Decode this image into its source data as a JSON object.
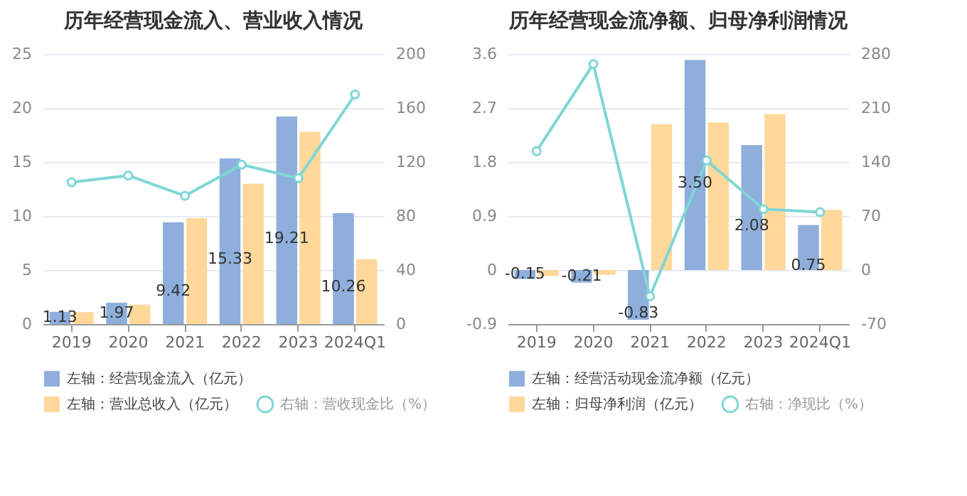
{
  "chart_data": [
    {
      "type": "bar",
      "title": "历年经营现金流入、营业收入情况",
      "categories": [
        "2019",
        "2020",
        "2021",
        "2022",
        "2023",
        "2024Q1"
      ],
      "series": [
        {
          "name": "左轴：经营现金流入（亿元）",
          "color": "#8eaedb",
          "values": [
            1.13,
            1.97,
            9.42,
            15.33,
            19.21,
            10.26
          ],
          "value_labels": [
            "1.13",
            "1.97",
            "9.42",
            "15.33",
            "19.21",
            "10.26"
          ]
        },
        {
          "name": "左轴：营业总收入（亿元）",
          "color": "#ffd89a",
          "values": [
            1.1,
            1.8,
            9.8,
            13.0,
            17.8,
            6.0
          ]
        },
        {
          "name": "右轴：营收现金比（%）",
          "color": "#7fd6d6",
          "type": "line",
          "axis": "y2",
          "values": [
            105,
            110,
            95,
            118,
            108,
            170
          ]
        }
      ],
      "ylim": [
        0,
        25
      ],
      "yticks": [
        0,
        5,
        10,
        15,
        20,
        25
      ],
      "y2lim": [
        0,
        200
      ],
      "y2ticks": [
        0,
        40,
        80,
        120,
        160,
        200
      ],
      "grid": "y",
      "legend": "bottom",
      "marker": "circle"
    },
    {
      "type": "bar",
      "title": "历年经营现金流净额、归母净利润情况",
      "categories": [
        "2019",
        "2020",
        "2021",
        "2022",
        "2023",
        "2024Q1"
      ],
      "series": [
        {
          "name": "左轴：经营活动现金流净额（亿元）",
          "color": "#8eaedb",
          "values": [
            -0.15,
            -0.21,
            -0.83,
            3.5,
            2.08,
            0.75
          ],
          "value_labels": [
            "-0.15",
            "-0.21",
            "-0.83",
            "3.50",
            "2.08",
            "0.75"
          ]
        },
        {
          "name": "左轴：归母净利润（亿元）",
          "color": "#ffd89a",
          "values": [
            -0.1,
            -0.08,
            2.43,
            2.46,
            2.6,
            1.0
          ]
        },
        {
          "name": "右轴：净现比（%）",
          "color": "#7fd6d6",
          "type": "line",
          "axis": "y2",
          "values": [
            154,
            267,
            -34,
            142,
            79,
            75
          ]
        }
      ],
      "ylim": [
        -0.9,
        3.6
      ],
      "yticks": [
        -0.9,
        0,
        0.9,
        1.8,
        2.7,
        3.6
      ],
      "y2lim": [
        -70,
        280
      ],
      "y2ticks": [
        -70,
        0,
        70,
        140,
        210,
        280
      ],
      "grid": "y",
      "legend": "bottom",
      "marker": "circle"
    }
  ]
}
